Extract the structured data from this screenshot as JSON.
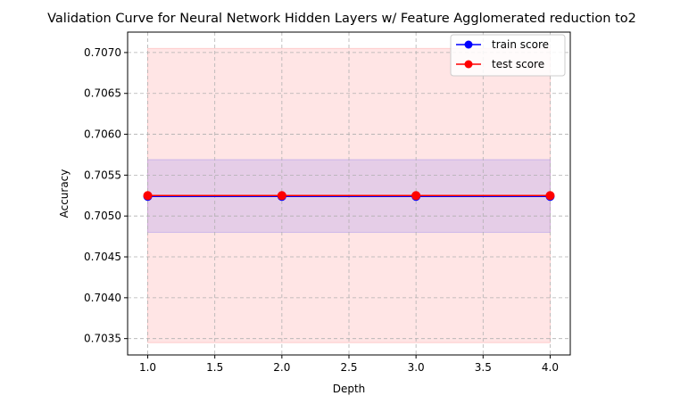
{
  "chart_data": {
    "type": "line",
    "title": "Validation Curve for Neural Network Hidden Layers w/ Feature Agglomerated reduction to2",
    "xlabel": "Depth",
    "ylabel": "Accuracy",
    "xlim": [
      0.85,
      4.15
    ],
    "ylim": [
      0.7033,
      0.70725
    ],
    "x_ticks": [
      1.0,
      1.5,
      2.0,
      2.5,
      3.0,
      3.5,
      4.0
    ],
    "x_tick_labels": [
      "1.0",
      "1.5",
      "2.0",
      "2.5",
      "3.0",
      "3.5",
      "4.0"
    ],
    "y_ticks": [
      0.7035,
      0.704,
      0.7045,
      0.705,
      0.7055,
      0.706,
      0.7065,
      0.707
    ],
    "y_tick_labels": [
      "0.7035",
      "0.7040",
      "0.7045",
      "0.7050",
      "0.7055",
      "0.7060",
      "0.7065",
      "0.7070"
    ],
    "grid": true,
    "legend_position": "top-right",
    "x": [
      1.0,
      2.0,
      3.0,
      4.0
    ],
    "series": [
      {
        "name": "train score",
        "color": "#0000ff",
        "values": [
          0.70524,
          0.70524,
          0.70524,
          0.70524
        ],
        "band": {
          "lower": 0.7048,
          "upper": 0.70569,
          "color": "#0000ff"
        }
      },
      {
        "name": "test score",
        "color": "#ff0000",
        "values": [
          0.70525,
          0.70525,
          0.70525,
          0.70525
        ],
        "band": {
          "lower": 0.70345,
          "upper": 0.70705,
          "color": "#ff0000"
        }
      }
    ]
  }
}
